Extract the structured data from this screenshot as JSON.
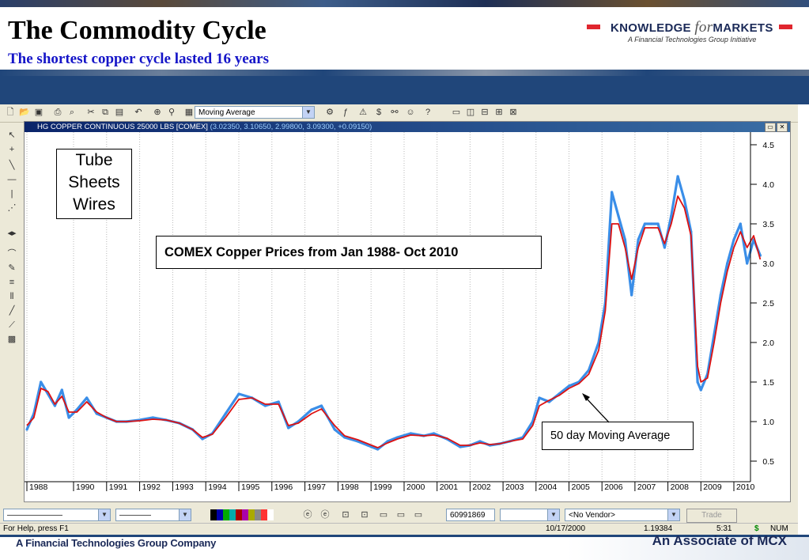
{
  "slide": {
    "title": "The Commodity Cycle",
    "subtitle": "The shortest copper cycle lasted 16 years",
    "footer_left": "A Financial Technologies Group Company",
    "footer_right": "An Associate of MCX"
  },
  "logo": {
    "name_part1": "KNOWLEDGE ",
    "name_part2": "for",
    "name_part3": "MARKETS",
    "tagline": "A Financial Technologies Group Initiative",
    "accent": "#e0262e"
  },
  "toolbar": {
    "study_select": "Moving Average",
    "icons": [
      "new-icon",
      "open-icon",
      "save-icon",
      "print-icon",
      "print-preview-icon",
      "cut-icon",
      "copy-icon",
      "paste-icon",
      "undo-icon",
      "crosshair-icon",
      "zoom-icon",
      "chart-type-icon",
      "study-icon",
      "function-icon",
      "alert-icon",
      "dollar-icon",
      "find-icon",
      "users-icon",
      "help-icon",
      "window-icon",
      "split-vertical-icon",
      "split-horizontal-icon",
      "grid-icon",
      "layout-icon"
    ]
  },
  "chart_window": {
    "header_symbol": "HG COPPER CONTINUOUS 25000 LBS [COMEX]",
    "header_values": "(3.02350, 3.10650, 2.99800, 3.09300, +0.09150)"
  },
  "annotations": {
    "uses_box": [
      "Tube",
      "Sheets",
      "Wires"
    ],
    "chart_label": "COMEX Copper Prices from Jan 1988- Oct 2010",
    "ma_label": "50 day Moving Average"
  },
  "bottom_toolbar": {
    "field_value": "60991869",
    "vendor_select": "<No Vendor>",
    "trade_button": "Trade"
  },
  "status_bar": {
    "help_text": "For Help, press F1",
    "date": "10/17/2000",
    "value": "1.19384",
    "time": "5:31",
    "currency": "$",
    "num": "NUM"
  },
  "chart_data": {
    "type": "line",
    "x_tick_labels": [
      "1988",
      "1990",
      "1991",
      "1992",
      "1993",
      "1994",
      "1995",
      "1996",
      "1997",
      "1998",
      "1999",
      "2000",
      "2001",
      "2002",
      "2003",
      "2004",
      "2005",
      "2006",
      "2007",
      "2008",
      "2009",
      "2010"
    ],
    "y_tick_labels": [
      "0.5",
      "1.0",
      "1.5",
      "2.0",
      "2.5",
      "3.0",
      "3.5",
      "4.0",
      "4.5"
    ],
    "ylim": [
      0.5,
      4.5
    ],
    "series": [
      {
        "color": "#3a8ee8",
        "x": [
          1988.0,
          1988.3,
          1988.6,
          1988.9,
          1989.2,
          1989.5,
          1989.8,
          1990.1,
          1990.4,
          1990.7,
          1991.0,
          1991.3,
          1991.6,
          1992.0,
          1992.4,
          1992.8,
          1993.2,
          1993.6,
          1993.9,
          1994.2,
          1994.6,
          1995.0,
          1995.4,
          1995.8,
          1996.2,
          1996.5,
          1996.8,
          1997.2,
          1997.5,
          1997.9,
          1998.2,
          1998.6,
          1998.9,
          1999.2,
          1999.5,
          1999.8,
          2000.2,
          2000.6,
          2000.9,
          2001.3,
          2001.7,
          2002.0,
          2002.3,
          2002.6,
          2002.9,
          2003.2,
          2003.6,
          2003.9,
          2004.1,
          2004.4,
          2004.7,
          2005.0,
          2005.3,
          2005.6,
          2005.9,
          2006.1,
          2006.3,
          2006.5,
          2006.7,
          2006.9,
          2007.1,
          2007.3,
          2007.5,
          2007.7,
          2007.9,
          2008.1,
          2008.3,
          2008.5,
          2008.7,
          2008.9,
          2009.0,
          2009.2,
          2009.4,
          2009.6,
          2009.8,
          2010.0,
          2010.2,
          2010.4,
          2010.6,
          2010.8
        ],
        "y": [
          0.9,
          1.1,
          1.5,
          1.35,
          1.2,
          1.4,
          1.05,
          1.15,
          1.3,
          1.1,
          1.05,
          1.0,
          1.0,
          1.02,
          1.05,
          1.02,
          0.98,
          0.9,
          0.78,
          0.85,
          1.1,
          1.35,
          1.3,
          1.2,
          1.25,
          0.92,
          1.0,
          1.15,
          1.2,
          0.9,
          0.8,
          0.75,
          0.7,
          0.65,
          0.75,
          0.8,
          0.85,
          0.82,
          0.85,
          0.78,
          0.68,
          0.7,
          0.75,
          0.7,
          0.72,
          0.75,
          0.8,
          1.0,
          1.3,
          1.25,
          1.35,
          1.45,
          1.5,
          1.65,
          2.0,
          2.5,
          3.9,
          3.6,
          3.3,
          2.6,
          3.3,
          3.5,
          3.5,
          3.5,
          3.2,
          3.6,
          4.1,
          3.8,
          3.4,
          1.5,
          1.4,
          1.6,
          2.1,
          2.6,
          3.0,
          3.3,
          3.5,
          3.0,
          3.3,
          3.1
        ]
      },
      {
        "name": "50 day Moving Average",
        "color": "#dd1111",
        "x": [
          1988.0,
          1988.3,
          1988.6,
          1988.9,
          1989.2,
          1989.5,
          1989.8,
          1990.1,
          1990.4,
          1990.7,
          1991.0,
          1991.3,
          1991.6,
          1992.0,
          1992.4,
          1992.8,
          1993.2,
          1993.6,
          1993.9,
          1994.2,
          1994.6,
          1995.0,
          1995.4,
          1995.8,
          1996.2,
          1996.5,
          1996.8,
          1997.2,
          1997.5,
          1997.9,
          1998.2,
          1998.6,
          1998.9,
          1999.2,
          1999.5,
          1999.8,
          2000.2,
          2000.6,
          2000.9,
          2001.3,
          2001.7,
          2002.0,
          2002.3,
          2002.6,
          2002.9,
          2003.2,
          2003.6,
          2003.9,
          2004.1,
          2004.4,
          2004.7,
          2005.0,
          2005.3,
          2005.6,
          2005.9,
          2006.1,
          2006.3,
          2006.5,
          2006.7,
          2006.9,
          2007.1,
          2007.3,
          2007.5,
          2007.7,
          2007.9,
          2008.1,
          2008.3,
          2008.5,
          2008.7,
          2008.9,
          2009.0,
          2009.2,
          2009.4,
          2009.6,
          2009.8,
          2010.0,
          2010.2,
          2010.4,
          2010.6,
          2010.8
        ],
        "y": [
          0.95,
          1.05,
          1.42,
          1.38,
          1.22,
          1.32,
          1.12,
          1.12,
          1.25,
          1.12,
          1.05,
          1.0,
          1.0,
          1.01,
          1.03,
          1.02,
          0.98,
          0.9,
          0.8,
          0.84,
          1.05,
          1.28,
          1.3,
          1.22,
          1.22,
          0.95,
          0.98,
          1.1,
          1.16,
          0.95,
          0.82,
          0.77,
          0.72,
          0.67,
          0.73,
          0.78,
          0.83,
          0.82,
          0.83,
          0.79,
          0.7,
          0.7,
          0.73,
          0.71,
          0.72,
          0.75,
          0.78,
          0.95,
          1.2,
          1.27,
          1.33,
          1.42,
          1.48,
          1.6,
          1.9,
          2.4,
          3.5,
          3.5,
          3.2,
          2.8,
          3.2,
          3.45,
          3.45,
          3.45,
          3.25,
          3.5,
          3.85,
          3.7,
          3.35,
          1.7,
          1.5,
          1.55,
          2.0,
          2.5,
          2.9,
          3.2,
          3.4,
          3.2,
          3.35,
          3.05
        ]
      }
    ],
    "grid": "vertical-dotted",
    "legend": "none"
  }
}
